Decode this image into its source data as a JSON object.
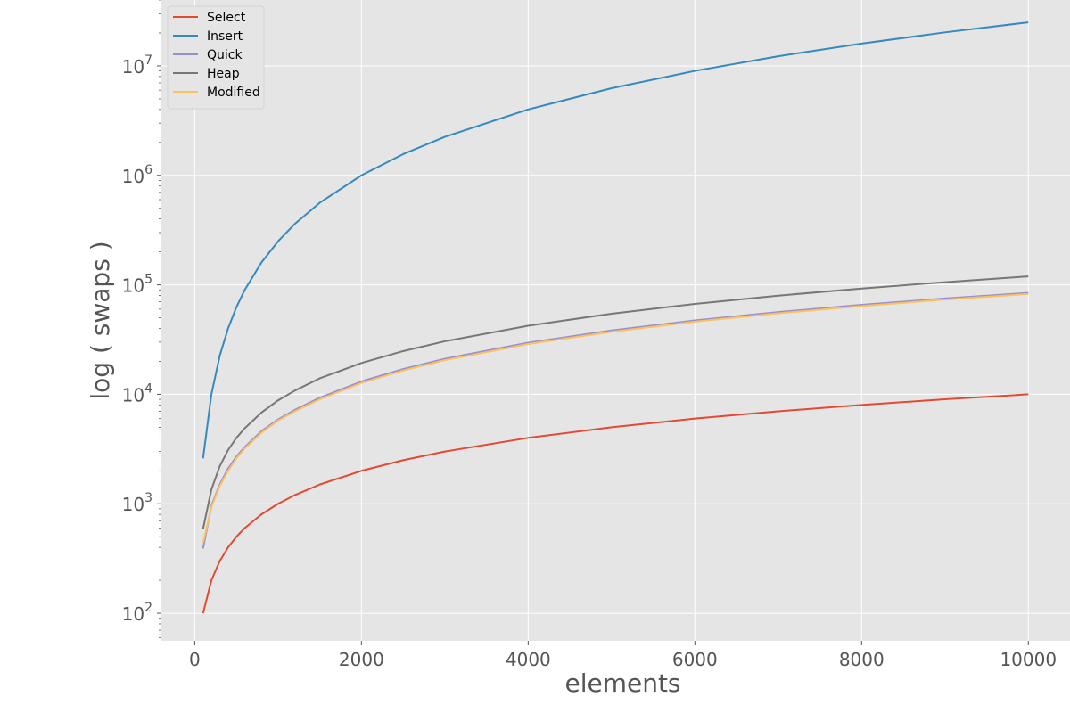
{
  "chart_data": {
    "type": "line",
    "title": "",
    "xlabel": "elements",
    "ylabel": "log ( swaps )",
    "xscale": "linear",
    "yscale": "log",
    "xlim": [
      -400,
      10500
    ],
    "ylim": [
      56,
      40000000
    ],
    "xticks": [
      0,
      2000,
      4000,
      6000,
      8000,
      10000
    ],
    "xtick_labels": [
      "0",
      "2000",
      "4000",
      "6000",
      "8000",
      "10000"
    ],
    "yticks": [
      100,
      1000,
      10000,
      100000,
      1000000,
      10000000
    ],
    "ytick_labels": [
      {
        "base": "10",
        "exp": "2"
      },
      {
        "base": "10",
        "exp": "3"
      },
      {
        "base": "10",
        "exp": "4"
      },
      {
        "base": "10",
        "exp": "5"
      },
      {
        "base": "10",
        "exp": "6"
      },
      {
        "base": "10",
        "exp": "7"
      }
    ],
    "grid": true,
    "legend_position": "top-left",
    "x": [
      100,
      200,
      300,
      400,
      500,
      600,
      800,
      1000,
      1200,
      1500,
      2000,
      2500,
      3000,
      4000,
      5000,
      6000,
      7000,
      8000,
      9000,
      10000
    ],
    "series": [
      {
        "name": "Select",
        "color": "#E24A33",
        "values": [
          100,
          200,
          300,
          400,
          500,
          600,
          800,
          1000,
          1200,
          1500,
          2000,
          2500,
          3000,
          4000,
          5000,
          6000,
          7000,
          8000,
          9000,
          10000
        ]
      },
      {
        "name": "Insert",
        "color": "#348ABD",
        "values": [
          2600,
          10000,
          22500,
          40000,
          62500,
          90000,
          160000,
          250000,
          360000,
          562500,
          1000000,
          1562500,
          2250000,
          4000000,
          6250000,
          9000000,
          12250000,
          16000000,
          20250000,
          25000000
        ]
      },
      {
        "name": "Quick",
        "color": "#988ED5",
        "values": [
          390,
          960,
          1500,
          2100,
          2700,
          3300,
          4600,
          5900,
          7200,
          9300,
          13100,
          17000,
          21100,
          29600,
          38300,
          47300,
          56400,
          65700,
          75100,
          84500
        ]
      },
      {
        "name": "Heap",
        "color": "#777777",
        "values": [
          590,
          1350,
          2200,
          3100,
          4000,
          4900,
          6800,
          8800,
          10800,
          14000,
          19300,
          24800,
          30500,
          42300,
          54500,
          67000,
          79700,
          92600,
          105800,
          119500
        ]
      },
      {
        "name": "Modified",
        "color": "#FBC15E",
        "values": [
          440,
          930,
          1450,
          2000,
          2600,
          3200,
          4450,
          5750,
          7000,
          9000,
          12700,
          16500,
          20500,
          28800,
          37300,
          46100,
          55000,
          64100,
          73300,
          82500
        ]
      }
    ]
  }
}
